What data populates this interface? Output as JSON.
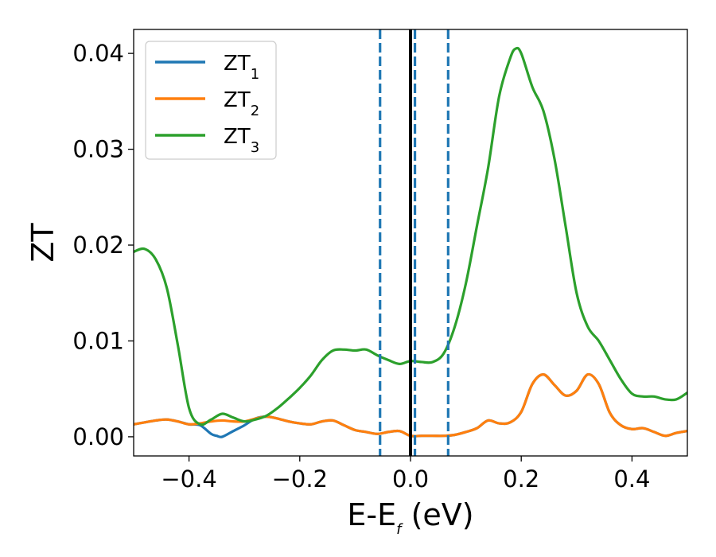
{
  "chart_data": {
    "type": "line",
    "xlabel": {
      "main": "E-E",
      "sub": "f",
      "suffix": " (eV)"
    },
    "ylabel": "ZT",
    "xlim": [
      -0.5,
      0.5
    ],
    "ylim": [
      -0.002,
      0.0425
    ],
    "x_ticks": [
      -0.4,
      -0.2,
      0.0,
      0.2,
      0.4
    ],
    "x_tick_labels": [
      "−0.4",
      "−0.2",
      "0.0",
      "0.2",
      "0.4"
    ],
    "y_ticks": [
      0.0,
      0.01,
      0.02,
      0.03,
      0.04
    ],
    "y_tick_labels": [
      "0.00",
      "0.01",
      "0.02",
      "0.03",
      "0.04"
    ],
    "grid": false,
    "legend_position": "top-left",
    "vertical_lines": [
      {
        "x": -0.055,
        "style": "dashed",
        "color": "#1f77b4"
      },
      {
        "x": 0.0,
        "style": "solid",
        "color": "#000000"
      },
      {
        "x": 0.008,
        "style": "dashed",
        "color": "#1f77b4"
      },
      {
        "x": 0.068,
        "style": "dashed",
        "color": "#1f77b4"
      }
    ],
    "series": [
      {
        "name": "ZT",
        "subscript": "1",
        "color": "#1f77b4",
        "x": [
          -0.5,
          -0.48,
          -0.46,
          -0.44,
          -0.42,
          -0.4,
          -0.38,
          -0.36,
          -0.35,
          -0.34,
          -0.32,
          -0.3,
          -0.28,
          -0.26,
          -0.24,
          -0.22,
          -0.2,
          -0.18,
          -0.16,
          -0.14,
          -0.12,
          -0.1,
          -0.08,
          -0.06,
          -0.04,
          -0.02,
          0.0,
          0.02,
          0.04,
          0.06,
          0.08,
          0.1,
          0.12,
          0.14,
          0.16,
          0.18,
          0.2,
          0.22,
          0.24,
          0.26,
          0.28,
          0.3,
          0.32,
          0.34,
          0.36,
          0.38,
          0.4,
          0.42,
          0.44,
          0.46,
          0.48,
          0.5
        ],
        "y": [
          0.0013,
          0.0015,
          0.0017,
          0.0018,
          0.0016,
          0.0013,
          0.0012,
          0.0003,
          0.0001,
          0.0,
          0.0006,
          0.0012,
          0.0019,
          0.0021,
          0.0019,
          0.0016,
          0.0014,
          0.0013,
          0.0016,
          0.0017,
          0.0012,
          0.0007,
          0.0005,
          0.0003,
          0.0005,
          0.0006,
          0.0001,
          0.0001,
          0.0001,
          0.0001,
          0.0002,
          0.0005,
          0.0009,
          0.0017,
          0.0014,
          0.0015,
          0.0026,
          0.0055,
          0.0065,
          0.0054,
          0.0043,
          0.0048,
          0.0065,
          0.0055,
          0.0025,
          0.0012,
          0.0008,
          0.0009,
          0.0005,
          0.0001,
          0.0004,
          0.0006
        ]
      },
      {
        "name": "ZT",
        "subscript": "2",
        "color": "#ff7f0e",
        "x": [
          -0.5,
          -0.48,
          -0.46,
          -0.44,
          -0.42,
          -0.4,
          -0.38,
          -0.36,
          -0.34,
          -0.32,
          -0.3,
          -0.28,
          -0.26,
          -0.24,
          -0.22,
          -0.2,
          -0.18,
          -0.16,
          -0.14,
          -0.12,
          -0.1,
          -0.08,
          -0.06,
          -0.04,
          -0.02,
          0.0,
          0.02,
          0.04,
          0.06,
          0.08,
          0.1,
          0.12,
          0.14,
          0.16,
          0.18,
          0.2,
          0.22,
          0.24,
          0.26,
          0.28,
          0.3,
          0.32,
          0.34,
          0.36,
          0.38,
          0.4,
          0.42,
          0.44,
          0.46,
          0.48,
          0.5
        ],
        "y": [
          0.0013,
          0.0015,
          0.0017,
          0.0018,
          0.0016,
          0.0013,
          0.0014,
          0.0016,
          0.0017,
          0.0016,
          0.0016,
          0.0019,
          0.0021,
          0.0019,
          0.0016,
          0.0014,
          0.0013,
          0.0016,
          0.0017,
          0.0012,
          0.0007,
          0.0005,
          0.0003,
          0.0005,
          0.0006,
          0.0001,
          0.0001,
          0.0001,
          0.0001,
          0.0002,
          0.0005,
          0.0009,
          0.0017,
          0.0014,
          0.0015,
          0.0026,
          0.0055,
          0.0065,
          0.0054,
          0.0043,
          0.0048,
          0.0065,
          0.0055,
          0.0025,
          0.0012,
          0.0008,
          0.0009,
          0.0005,
          0.0001,
          0.0004,
          0.0006
        ]
      },
      {
        "name": "ZT",
        "subscript": "3",
        "color": "#2ca02c",
        "x": [
          -0.5,
          -0.48,
          -0.46,
          -0.44,
          -0.42,
          -0.4,
          -0.38,
          -0.36,
          -0.34,
          -0.32,
          -0.3,
          -0.28,
          -0.26,
          -0.24,
          -0.22,
          -0.2,
          -0.18,
          -0.16,
          -0.14,
          -0.12,
          -0.1,
          -0.08,
          -0.06,
          -0.04,
          -0.02,
          0.0,
          0.02,
          0.04,
          0.06,
          0.08,
          0.1,
          0.12,
          0.14,
          0.16,
          0.18,
          0.19,
          0.2,
          0.22,
          0.24,
          0.26,
          0.28,
          0.3,
          0.32,
          0.34,
          0.36,
          0.38,
          0.4,
          0.42,
          0.44,
          0.46,
          0.48,
          0.5
        ],
        "y": [
          0.0193,
          0.0196,
          0.0185,
          0.0155,
          0.0095,
          0.003,
          0.0013,
          0.0018,
          0.0024,
          0.002,
          0.0016,
          0.0018,
          0.0022,
          0.003,
          0.004,
          0.0051,
          0.0064,
          0.008,
          0.009,
          0.0091,
          0.009,
          0.0091,
          0.0085,
          0.008,
          0.0076,
          0.0079,
          0.0078,
          0.0078,
          0.0087,
          0.0115,
          0.016,
          0.022,
          0.028,
          0.0355,
          0.0395,
          0.0405,
          0.04,
          0.0365,
          0.034,
          0.029,
          0.022,
          0.015,
          0.0115,
          0.01,
          0.008,
          0.006,
          0.0045,
          0.0042,
          0.0042,
          0.0039,
          0.0039,
          0.0046
        ]
      }
    ]
  }
}
